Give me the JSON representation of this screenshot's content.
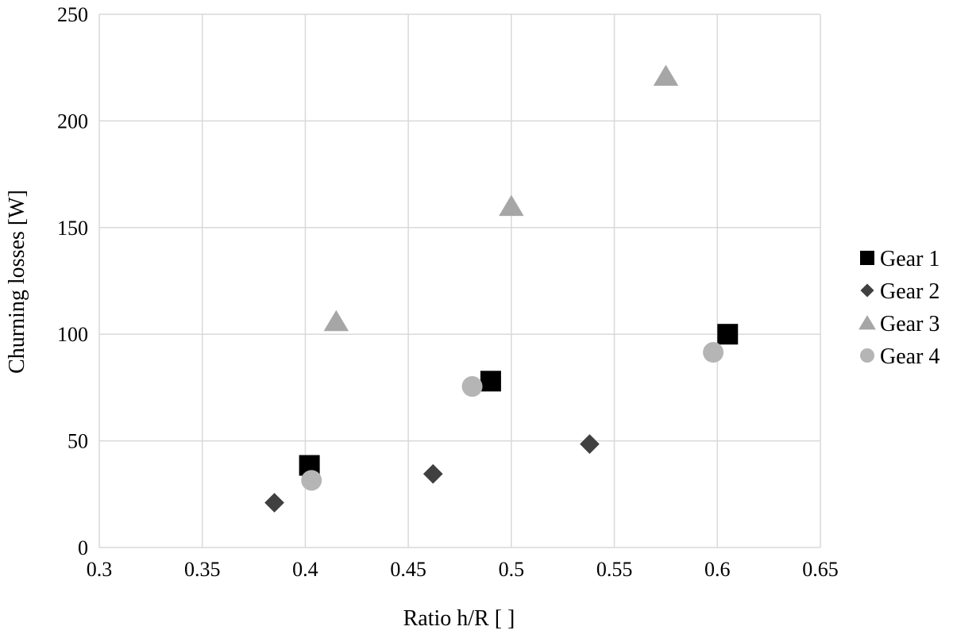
{
  "chart_data": {
    "type": "scatter",
    "title": "",
    "xlabel": "Ratio h/R [ ]",
    "ylabel": "Churning losses [W]",
    "xlim": [
      0.3,
      0.65
    ],
    "ylim": [
      0,
      250
    ],
    "x_ticks": [
      "0.3",
      "0.35",
      "0.4",
      "0.45",
      "0.5",
      "0.55",
      "0.6",
      "0.65"
    ],
    "y_ticks": [
      "0",
      "50",
      "100",
      "150",
      "200",
      "250"
    ],
    "grid": true,
    "legend_position": "right",
    "series": [
      {
        "name": "Gear 1",
        "marker": "square",
        "color": "#000000",
        "points": [
          {
            "x": 0.402,
            "y": 38.5
          },
          {
            "x": 0.49,
            "y": 78
          },
          {
            "x": 0.605,
            "y": 100
          }
        ]
      },
      {
        "name": "Gear 2",
        "marker": "diamond",
        "color": "#404040",
        "points": [
          {
            "x": 0.385,
            "y": 21
          },
          {
            "x": 0.462,
            "y": 34.5
          },
          {
            "x": 0.538,
            "y": 48.5
          }
        ]
      },
      {
        "name": "Gear 3",
        "marker": "triangle",
        "color": "#a6a6a6",
        "points": [
          {
            "x": 0.415,
            "y": 106
          },
          {
            "x": 0.5,
            "y": 160
          },
          {
            "x": 0.575,
            "y": 221
          }
        ]
      },
      {
        "name": "Gear 4",
        "marker": "circle",
        "color": "#b5b5b5",
        "points": [
          {
            "x": 0.403,
            "y": 31.5
          },
          {
            "x": 0.481,
            "y": 75.5
          },
          {
            "x": 0.598,
            "y": 91.5
          }
        ]
      }
    ]
  }
}
